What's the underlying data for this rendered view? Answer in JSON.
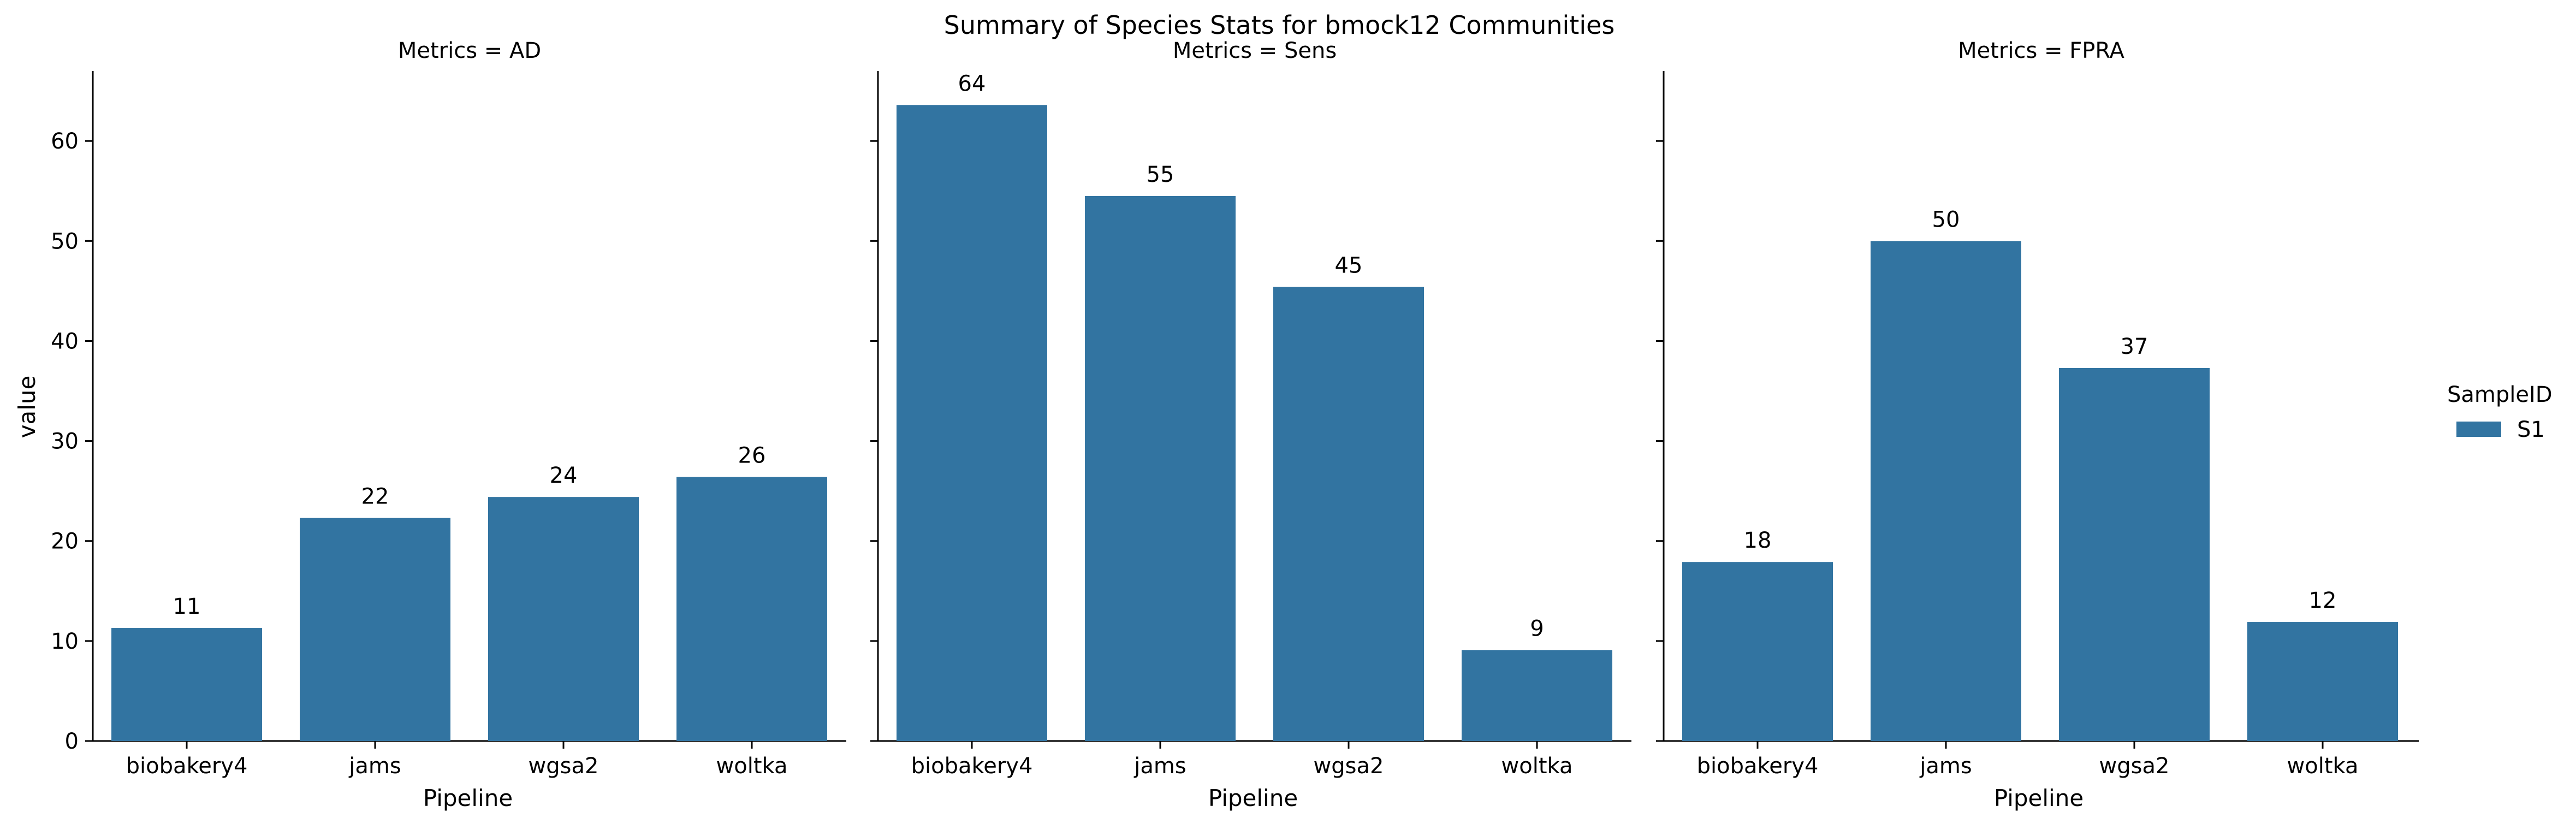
{
  "chart_data": {
    "type": "bar",
    "title": "Summary of Species Stats for bmock12 Communities",
    "ylabel": "value",
    "xlabel": "Pipeline",
    "ylim": [
      0,
      67
    ],
    "yticks": [
      0,
      10,
      20,
      30,
      40,
      50,
      60
    ],
    "categories": [
      "biobakery4",
      "jams",
      "wgsa2",
      "woltka"
    ],
    "bar_color": "#3274a1",
    "legend": {
      "title": "SampleID",
      "entries": [
        {
          "label": "S1",
          "color": "#3274a1"
        }
      ],
      "placement": "right"
    },
    "panels": [
      {
        "title": "Metrics = AD",
        "values": [
          11.3,
          22.3,
          24.4,
          26.4
        ],
        "labels": [
          "11",
          "22",
          "24",
          "26"
        ]
      },
      {
        "title": "Metrics = Sens",
        "values": [
          63.6,
          54.5,
          45.4,
          9.1
        ],
        "labels": [
          "64",
          "55",
          "45",
          "9"
        ]
      },
      {
        "title": "Metrics = FPRA",
        "values": [
          17.9,
          50.0,
          37.3,
          11.9
        ],
        "labels": [
          "18",
          "50",
          "37",
          "12"
        ]
      }
    ]
  }
}
